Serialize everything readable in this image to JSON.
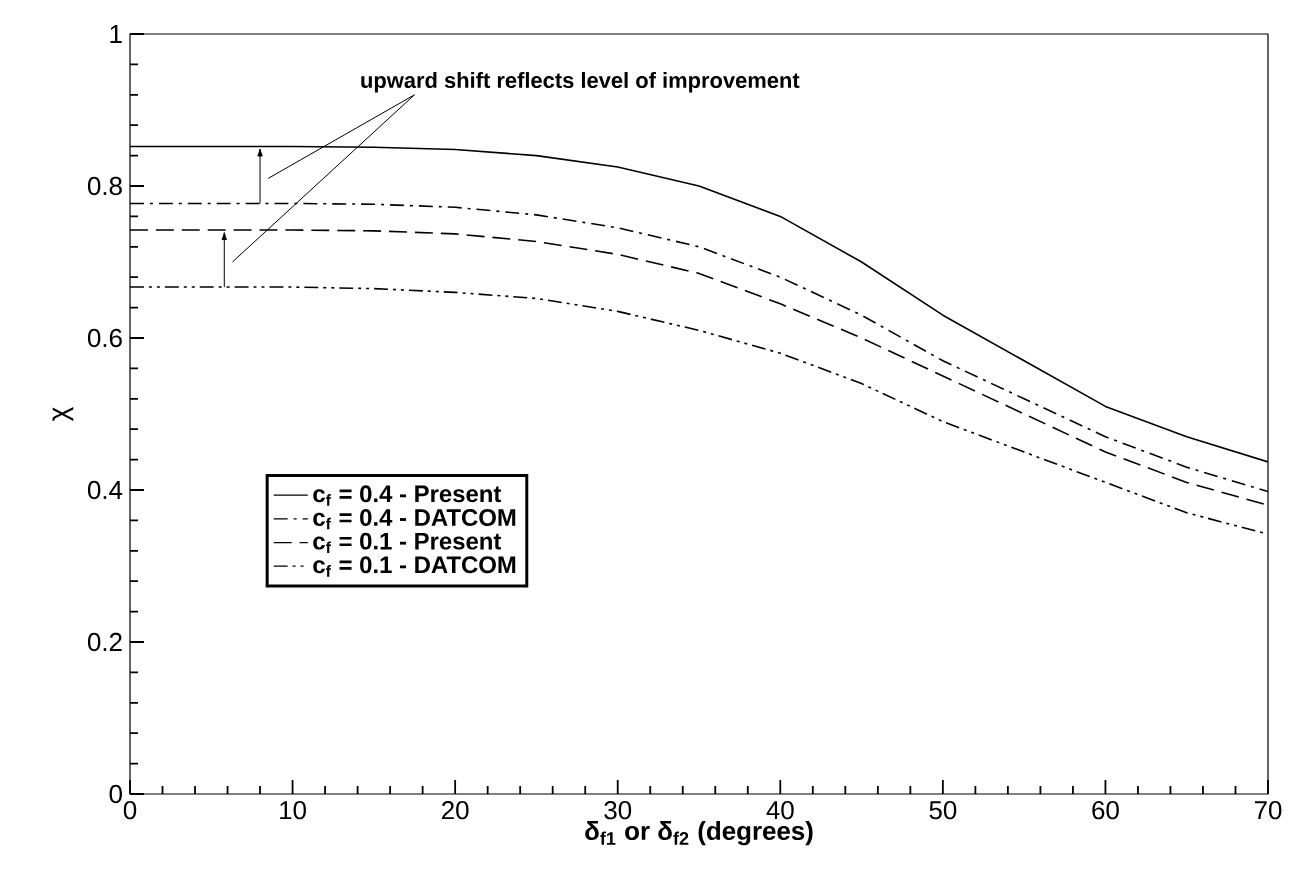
{
  "chart_data": {
    "type": "line",
    "xlabel": "δ$_{f1}$ or δ$_{f2}$ (degrees)",
    "ylabel": "χ",
    "annotations": [
      "upward shift reflects level of improvement"
    ],
    "x": [
      0,
      5,
      10,
      15,
      20,
      25,
      30,
      35,
      40,
      45,
      50,
      55,
      60,
      65,
      70
    ],
    "series": [
      {
        "name": "c$_{f}$ = 0.4 - Present",
        "color": "#000000",
        "line_style": "solid",
        "values": [
          0.852,
          0.852,
          0.852,
          0.851,
          0.848,
          0.84,
          0.825,
          0.8,
          0.76,
          0.7,
          0.63,
          0.57,
          0.51,
          0.47,
          0.437
        ]
      },
      {
        "name": "c$_{f}$ = 0.4 - DATCOM",
        "color": "#000000",
        "line_style": "dashdot",
        "values": [
          0.777,
          0.777,
          0.777,
          0.776,
          0.772,
          0.762,
          0.745,
          0.72,
          0.68,
          0.63,
          0.57,
          0.52,
          0.47,
          0.43,
          0.398
        ]
      },
      {
        "name": "c$_{f}$ = 0.1 - Present",
        "color": "#000000",
        "line_style": "dashed",
        "values": [
          0.742,
          0.742,
          0.742,
          0.741,
          0.737,
          0.727,
          0.71,
          0.685,
          0.645,
          0.6,
          0.55,
          0.5,
          0.45,
          0.41,
          0.38
        ]
      },
      {
        "name": "c$_{f}$ = 0.1 - DATCOM",
        "color": "#000000",
        "line_style": "dashdotdot",
        "values": [
          0.667,
          0.667,
          0.667,
          0.665,
          0.66,
          0.652,
          0.635,
          0.61,
          0.58,
          0.54,
          0.49,
          0.45,
          0.41,
          0.37,
          0.342
        ]
      }
    ],
    "xlim": [
      0,
      70
    ],
    "ylim": [
      0,
      1
    ],
    "xticks": [
      0,
      10,
      20,
      30,
      40,
      50,
      60,
      70
    ],
    "yticks": [
      0,
      0.2,
      0.4,
      0.6,
      0.8,
      1
    ],
    "legend": "left",
    "grid": false
  }
}
